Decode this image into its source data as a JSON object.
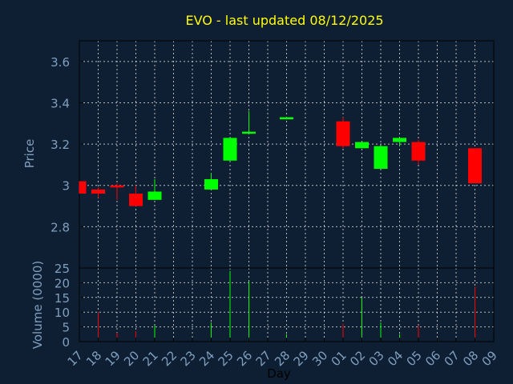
{
  "chart_data": [
    {
      "type": "candlestick",
      "title": "EVO - last updated 08/12/2025",
      "ylabel": "Price",
      "ylim": [
        2.6,
        3.7
      ],
      "yticks": [
        "2.8",
        "3",
        "3.2",
        "3.4",
        "3.6"
      ],
      "ytick_values": [
        2.8,
        3.0,
        3.2,
        3.4,
        3.6
      ],
      "grid": true,
      "colors": {
        "up": "#00ff00",
        "down": "#ff0000",
        "title": "#ffff00",
        "axis_text": "#7f9fbf",
        "background": "#0f1f33",
        "grid": "#ffffff"
      },
      "candles": [
        {
          "day": "17",
          "open": 3.02,
          "close": 2.96,
          "high": 3.02,
          "low": 2.96
        },
        {
          "day": "18",
          "open": 2.98,
          "close": 2.96,
          "high": 2.99,
          "low": 2.94
        },
        {
          "day": "19",
          "open": 3.0,
          "close": 2.99,
          "high": 3.01,
          "low": 2.93
        },
        {
          "day": "20",
          "open": 2.96,
          "close": 2.9,
          "high": 3.0,
          "low": 2.9
        },
        {
          "day": "21",
          "open": 2.93,
          "close": 2.97,
          "high": 3.03,
          "low": 2.93
        },
        {
          "day": "24",
          "open": 2.98,
          "close": 3.03,
          "high": 3.06,
          "low": 2.98
        },
        {
          "day": "25",
          "open": 3.12,
          "close": 3.23,
          "high": 3.23,
          "low": 3.12
        },
        {
          "day": "26",
          "open": 3.25,
          "close": 3.26,
          "high": 3.36,
          "low": 3.25
        },
        {
          "day": "28",
          "open": 3.32,
          "close": 3.33,
          "high": 3.33,
          "low": 3.32
        },
        {
          "day": "01",
          "open": 3.31,
          "close": 3.19,
          "high": 3.33,
          "low": 3.18
        },
        {
          "day": "02",
          "open": 3.18,
          "close": 3.21,
          "high": 3.21,
          "low": 3.18
        },
        {
          "day": "03",
          "open": 3.08,
          "close": 3.19,
          "high": 3.19,
          "low": 3.08
        },
        {
          "day": "04",
          "open": 3.21,
          "close": 3.23,
          "high": 3.23,
          "low": 3.19
        },
        {
          "day": "05",
          "open": 3.21,
          "close": 3.12,
          "high": 3.22,
          "low": 3.1
        },
        {
          "day": "08",
          "open": 3.18,
          "close": 3.01,
          "high": 3.18,
          "low": 3.01
        }
      ]
    },
    {
      "type": "bar",
      "ylabel": "Volume (0000)",
      "xlabel": "Day",
      "ylim": [
        0,
        25
      ],
      "yticks": [
        "0",
        "5",
        "10",
        "15",
        "20",
        "25"
      ],
      "ytick_values": [
        0,
        5,
        10,
        15,
        20,
        25
      ],
      "categories": [
        "17",
        "18",
        "19",
        "20",
        "21",
        "22",
        "23",
        "24",
        "25",
        "26",
        "27",
        "28",
        "29",
        "30",
        "01",
        "02",
        "03",
        "04",
        "05",
        "06",
        "07",
        "08",
        "09"
      ],
      "volumes": [
        {
          "day": "18",
          "value": 10,
          "direction": "down"
        },
        {
          "day": "19",
          "value": 3,
          "direction": "down"
        },
        {
          "day": "20",
          "value": 3.5,
          "direction": "down"
        },
        {
          "day": "21",
          "value": 5.5,
          "direction": "up"
        },
        {
          "day": "24",
          "value": 6.5,
          "direction": "up"
        },
        {
          "day": "25",
          "value": 24,
          "direction": "up"
        },
        {
          "day": "26",
          "value": 20.5,
          "direction": "up"
        },
        {
          "day": "28",
          "value": 2.5,
          "direction": "up"
        },
        {
          "day": "01",
          "value": 6,
          "direction": "down"
        },
        {
          "day": "02",
          "value": 15,
          "direction": "up"
        },
        {
          "day": "03",
          "value": 6.5,
          "direction": "up"
        },
        {
          "day": "04",
          "value": 2.5,
          "direction": "up"
        },
        {
          "day": "05",
          "value": 5.5,
          "direction": "down"
        },
        {
          "day": "08",
          "value": 18.5,
          "direction": "down"
        }
      ]
    }
  ]
}
